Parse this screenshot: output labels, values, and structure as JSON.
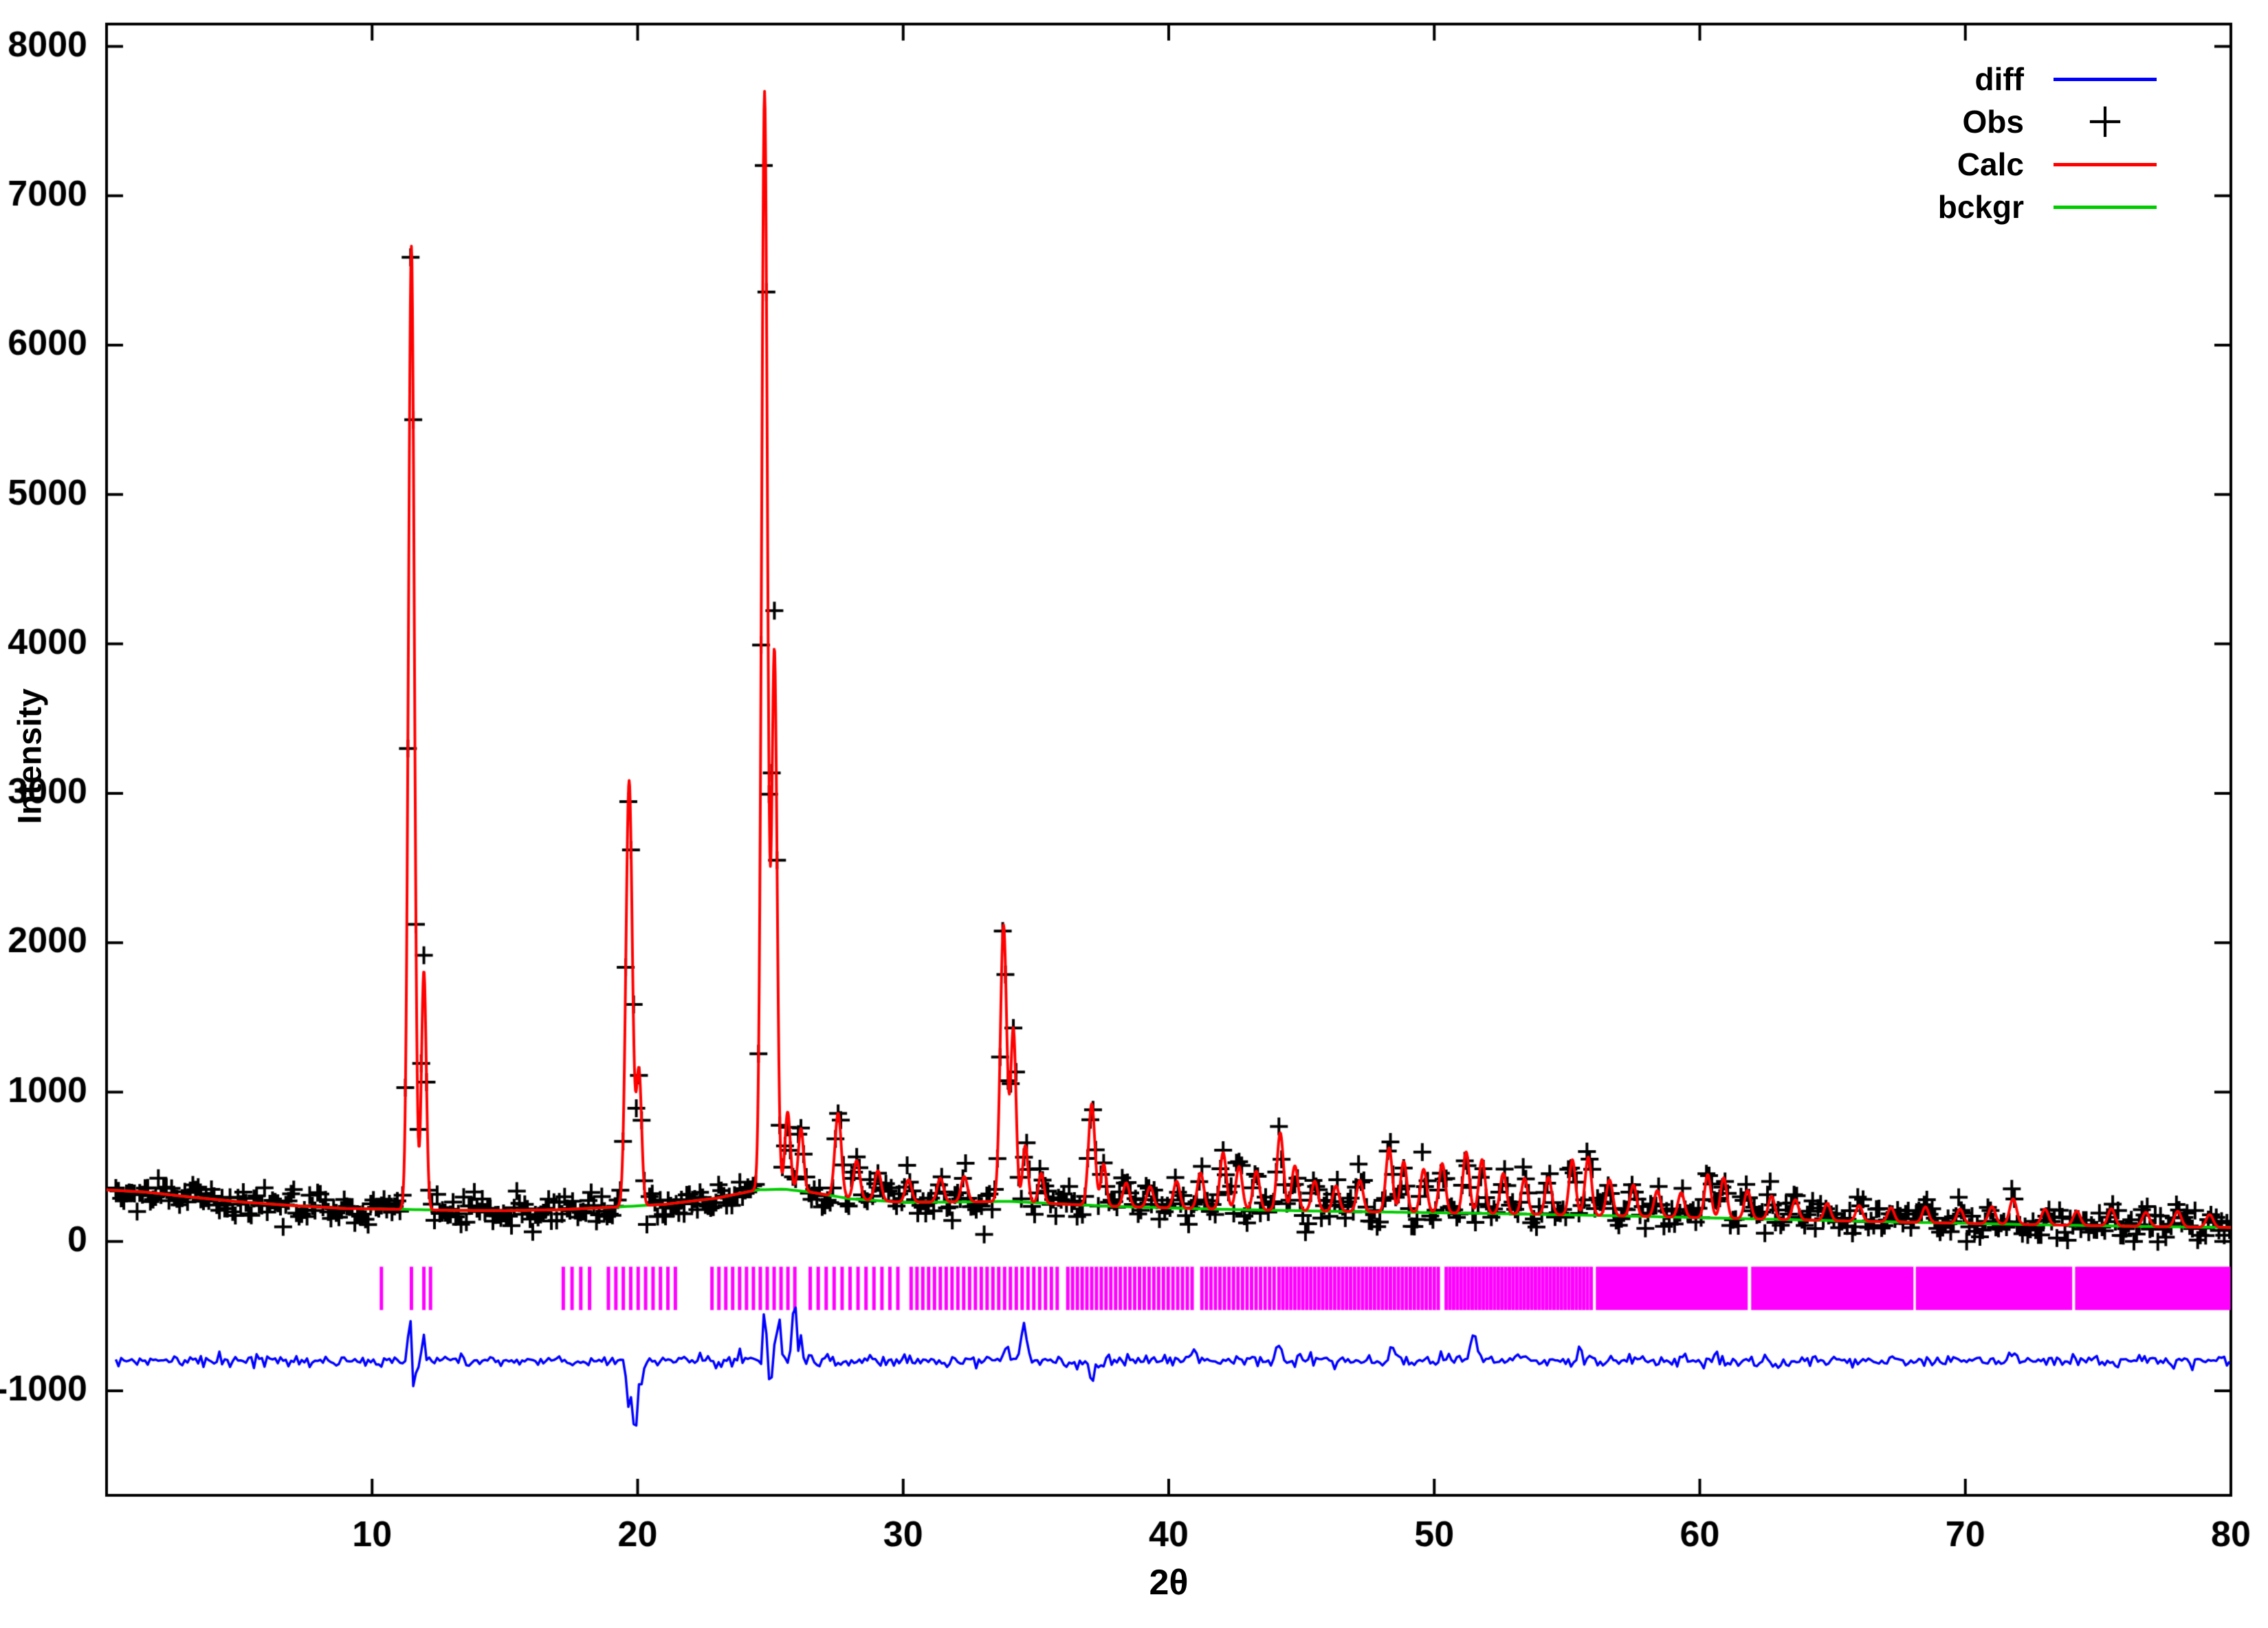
{
  "chart_data": {
    "type": "line",
    "title": "",
    "xlabel": "2θ",
    "ylabel": "Intensity",
    "xlim": [
      0,
      80
    ],
    "ylim": [
      -1700,
      8150
    ],
    "x_ticks": [
      10,
      20,
      30,
      40,
      50,
      60,
      70,
      80
    ],
    "y_ticks": [
      -1000,
      0,
      1000,
      2000,
      3000,
      4000,
      5000,
      6000,
      7000,
      8000
    ],
    "grid": false,
    "legend_position": "top-right",
    "seed": 11,
    "colors": {
      "obs": "#000000",
      "calc": "#ff0000",
      "bckgr": "#00cc00",
      "diff": "#0000ff",
      "bragg": "#ff00ff"
    },
    "legend": [
      {
        "label": "diff",
        "color": "#0000ff",
        "marker": "line"
      },
      {
        "label": "Obs",
        "color": "#000000",
        "marker": "plus"
      },
      {
        "label": "Calc",
        "color": "#ff0000",
        "marker": "line"
      },
      {
        "label": "bckgr",
        "color": "#00cc00",
        "marker": "line"
      }
    ],
    "background_points": [
      [
        0,
        345
      ],
      [
        1.5,
        330
      ],
      [
        3,
        300
      ],
      [
        5,
        265
      ],
      [
        7,
        240
      ],
      [
        9,
        220
      ],
      [
        11,
        215
      ],
      [
        13,
        208
      ],
      [
        15,
        206
      ],
      [
        17,
        212
      ],
      [
        19,
        228
      ],
      [
        21,
        248
      ],
      [
        23,
        290
      ],
      [
        24.5,
        345
      ],
      [
        25.5,
        350
      ],
      [
        26.5,
        330
      ],
      [
        28,
        285
      ],
      [
        30,
        262
      ],
      [
        32,
        264
      ],
      [
        34,
        268
      ],
      [
        36,
        250
      ],
      [
        38,
        234
      ],
      [
        40,
        224
      ],
      [
        42,
        215
      ],
      [
        44,
        208
      ],
      [
        46,
        202
      ],
      [
        48,
        197
      ],
      [
        50,
        192
      ],
      [
        52,
        187
      ],
      [
        54,
        181
      ],
      [
        56,
        174
      ],
      [
        58,
        167
      ],
      [
        60,
        159
      ],
      [
        62,
        151
      ],
      [
        64,
        143
      ],
      [
        66,
        135
      ],
      [
        68,
        128
      ],
      [
        70,
        121
      ],
      [
        72,
        114
      ],
      [
        74,
        108
      ],
      [
        76,
        102
      ],
      [
        78,
        97
      ],
      [
        80,
        93
      ]
    ],
    "peaks": [
      [
        11.48,
        6450,
        0.11
      ],
      [
        11.95,
        1600,
        0.09
      ],
      [
        19.68,
        2850,
        0.12
      ],
      [
        20.05,
        900,
        0.1
      ],
      [
        24.78,
        7350,
        0.11
      ],
      [
        25.15,
        3600,
        0.1
      ],
      [
        25.65,
        520,
        0.1
      ],
      [
        26.15,
        420,
        0.1
      ],
      [
        27.55,
        560,
        0.12
      ],
      [
        28.25,
        260,
        0.12
      ],
      [
        29.05,
        200,
        0.12
      ],
      [
        30.2,
        150,
        0.12
      ],
      [
        31.4,
        160,
        0.12
      ],
      [
        32.3,
        170,
        0.12
      ],
      [
        33.78,
        1850,
        0.12
      ],
      [
        34.15,
        1150,
        0.1
      ],
      [
        34.6,
        380,
        0.1
      ],
      [
        35.2,
        200,
        0.1
      ],
      [
        37.1,
        680,
        0.12
      ],
      [
        37.55,
        280,
        0.1
      ],
      [
        38.4,
        160,
        0.12
      ],
      [
        39.3,
        140,
        0.12
      ],
      [
        40.3,
        180,
        0.12
      ],
      [
        41.2,
        240,
        0.12
      ],
      [
        42.05,
        380,
        0.12
      ],
      [
        42.65,
        290,
        0.12
      ],
      [
        43.3,
        260,
        0.12
      ],
      [
        44.2,
        520,
        0.12
      ],
      [
        44.75,
        300,
        0.12
      ],
      [
        45.5,
        200,
        0.12
      ],
      [
        46.3,
        170,
        0.12
      ],
      [
        47.2,
        210,
        0.12
      ],
      [
        48.3,
        430,
        0.12
      ],
      [
        48.85,
        340,
        0.12
      ],
      [
        49.6,
        290,
        0.12
      ],
      [
        50.3,
        330,
        0.12
      ],
      [
        51.2,
        410,
        0.12
      ],
      [
        51.8,
        360,
        0.12
      ],
      [
        52.6,
        270,
        0.12
      ],
      [
        53.4,
        240,
        0.12
      ],
      [
        54.3,
        250,
        0.12
      ],
      [
        55.2,
        370,
        0.12
      ],
      [
        55.8,
        390,
        0.12
      ],
      [
        56.6,
        240,
        0.12
      ],
      [
        57.5,
        210,
        0.12
      ],
      [
        58.4,
        175,
        0.12
      ],
      [
        59.3,
        165,
        0.12
      ],
      [
        60.3,
        290,
        0.12
      ],
      [
        60.9,
        270,
        0.12
      ],
      [
        61.8,
        190,
        0.12
      ],
      [
        62.7,
        155,
        0.12
      ],
      [
        63.6,
        135,
        0.12
      ],
      [
        64.8,
        115,
        0.12
      ],
      [
        66.0,
        105,
        0.12
      ],
      [
        67.2,
        95,
        0.12
      ],
      [
        68.5,
        105,
        0.12
      ],
      [
        69.8,
        95,
        0.12
      ],
      [
        71.0,
        115,
        0.13
      ],
      [
        71.8,
        170,
        0.13
      ],
      [
        73.0,
        105,
        0.13
      ],
      [
        74.2,
        95,
        0.13
      ],
      [
        75.5,
        115,
        0.13
      ],
      [
        76.8,
        95,
        0.13
      ],
      [
        78.0,
        105,
        0.13
      ],
      [
        79.2,
        85,
        0.13
      ]
    ],
    "calc": {
      "step": 0.02
    },
    "obs": {
      "x_start": 0.35,
      "x_end": 80,
      "step": 0.1,
      "noise_base": 40,
      "noise_scale": 0.9,
      "marker_half": 13
    },
    "diff": {
      "baseline": -800,
      "x_start": 0.35,
      "x_end": 80,
      "step": 0.1,
      "noise_base": 18,
      "noise_scale": 0.4,
      "features": [
        [
          11.42,
          320,
          0.06
        ],
        [
          11.55,
          -180,
          0.05
        ],
        [
          11.95,
          150,
          0.06
        ],
        [
          19.62,
          -280,
          0.06
        ],
        [
          19.9,
          -470,
          0.09
        ],
        [
          20.15,
          -180,
          0.06
        ],
        [
          24.78,
          300,
          0.05
        ],
        [
          25.0,
          -200,
          0.05
        ],
        [
          25.3,
          380,
          0.06
        ],
        [
          25.9,
          430,
          0.07
        ],
        [
          26.15,
          180,
          0.05
        ],
        [
          33.9,
          120,
          0.1
        ],
        [
          34.55,
          210,
          0.12
        ],
        [
          37.1,
          -130,
          0.08
        ],
        [
          40.9,
          60,
          0.1
        ],
        [
          44.2,
          80,
          0.1
        ],
        [
          48.4,
          100,
          0.12
        ],
        [
          51.5,
          160,
          0.12
        ],
        [
          55.5,
          70,
          0.12
        ],
        [
          60.6,
          60,
          0.12
        ],
        [
          71.8,
          50,
          0.12
        ]
      ]
    },
    "bragg": {
      "y_top": -170,
      "y_bottom": -460,
      "sparse": [
        10.35,
        11.48,
        11.95,
        12.2
      ],
      "runs": [
        [
          17.2,
          18.5,
          0.33
        ],
        [
          18.9,
          21.5,
          0.28
        ],
        [
          22.8,
          26.0,
          0.26
        ],
        [
          26.5,
          30.0,
          0.3
        ],
        [
          30.3,
          36.0,
          0.22
        ],
        [
          36.2,
          41.0,
          0.18
        ],
        [
          41.25,
          44.0,
          0.17
        ],
        [
          44.15,
          50.2,
          0.15
        ],
        [
          50.45,
          56.0,
          0.14
        ],
        [
          56.15,
          61.8,
          0.13
        ],
        [
          62.0,
          68.0,
          0.13
        ],
        [
          68.2,
          74.0,
          0.12
        ],
        [
          74.2,
          80.0,
          0.11
        ]
      ]
    }
  }
}
